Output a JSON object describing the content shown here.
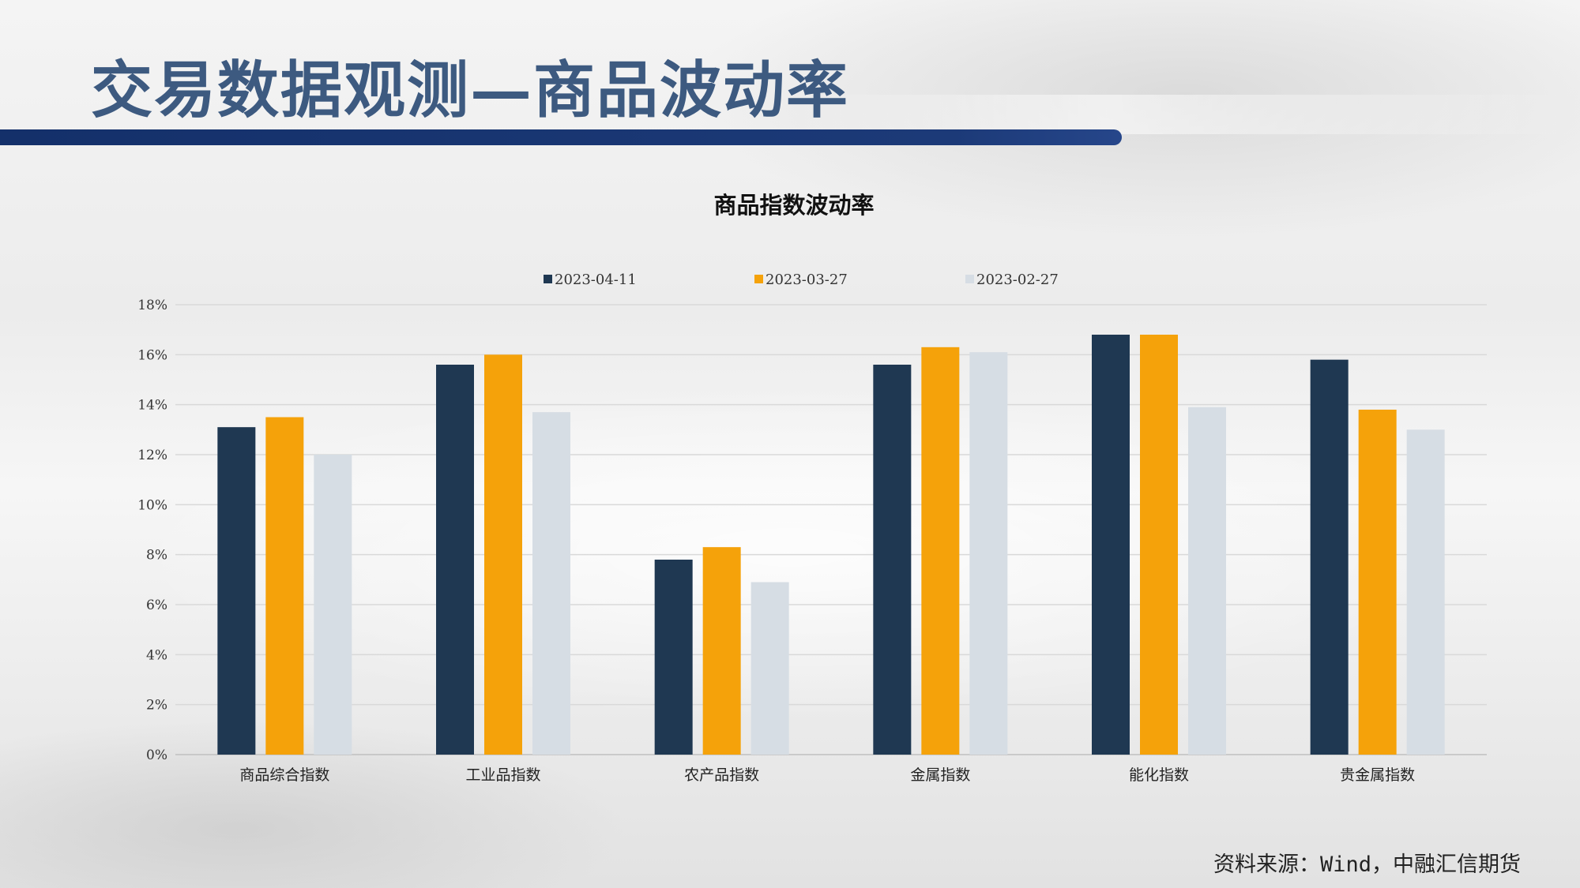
{
  "page": {
    "title": "交易数据观测—商品波动率",
    "source": "资料来源：Wind，中融汇信期货"
  },
  "colors": {
    "title": "#3d5a80",
    "bar": "#1c3a78",
    "series": [
      "#1f3852",
      "#f5a20a",
      "#d6dde4"
    ]
  },
  "chart_data": {
    "type": "bar",
    "title": "商品指数波动率",
    "categories": [
      "商品综合指数",
      "工业品指数",
      "农产品指数",
      "金属指数",
      "能化指数",
      "贵金属指数"
    ],
    "series": [
      {
        "name": "2023-04-11",
        "values": [
          13.1,
          15.6,
          7.8,
          15.6,
          16.8,
          15.8
        ]
      },
      {
        "name": "2023-03-27",
        "values": [
          13.5,
          16.0,
          8.3,
          16.3,
          16.8,
          13.8
        ]
      },
      {
        "name": "2023-02-27",
        "values": [
          12.0,
          13.7,
          6.9,
          16.1,
          13.9,
          13.0
        ]
      }
    ],
    "ylim": [
      0,
      18
    ],
    "yticks": [
      "0%",
      "2%",
      "4%",
      "6%",
      "8%",
      "10%",
      "12%",
      "14%",
      "16%",
      "18%"
    ],
    "ytick_values": [
      0,
      2,
      4,
      6,
      8,
      10,
      12,
      14,
      16,
      18
    ],
    "legend_position": "top-center",
    "grid": true
  }
}
